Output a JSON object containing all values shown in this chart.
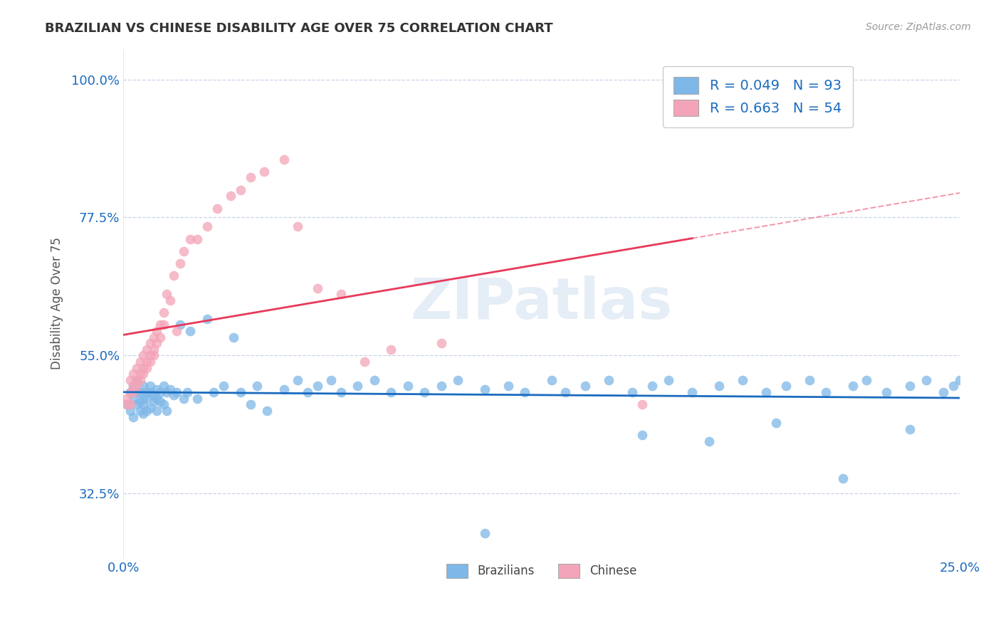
{
  "title": "BRAZILIAN VS CHINESE DISABILITY AGE OVER 75 CORRELATION CHART",
  "source": "Source: ZipAtlas.com",
  "ylabel": "Disability Age Over 75",
  "xlim": [
    0.0,
    0.25
  ],
  "ylim": [
    0.22,
    1.05
  ],
  "xtick_labels": [
    "0.0%",
    "25.0%"
  ],
  "ytick_labels": [
    "32.5%",
    "55.0%",
    "77.5%",
    "100.0%"
  ],
  "ytick_vals": [
    0.325,
    0.55,
    0.775,
    1.0
  ],
  "xtick_vals": [
    0.0,
    0.25
  ],
  "blue_color": "#7eb8e8",
  "pink_color": "#f4a4b8",
  "blue_line_color": "#1a6bbf",
  "pink_line_color": "#e8395a",
  "r_blue": 0.049,
  "n_blue": 93,
  "r_pink": 0.663,
  "n_pink": 54,
  "legend_label_blue": "Brazilians",
  "legend_label_pink": "Chinese",
  "watermark": "ZIPatlas",
  "background_color": "#ffffff",
  "grid_color": "#c8d4e8",
  "blue_scatter_x": [
    0.001,
    0.002,
    0.002,
    0.003,
    0.003,
    0.003,
    0.004,
    0.004,
    0.004,
    0.005,
    0.005,
    0.005,
    0.006,
    0.006,
    0.006,
    0.006,
    0.007,
    0.007,
    0.007,
    0.008,
    0.008,
    0.008,
    0.009,
    0.009,
    0.01,
    0.01,
    0.01,
    0.011,
    0.011,
    0.012,
    0.012,
    0.013,
    0.013,
    0.014,
    0.015,
    0.016,
    0.017,
    0.018,
    0.019,
    0.02,
    0.022,
    0.025,
    0.027,
    0.03,
    0.033,
    0.035,
    0.038,
    0.04,
    0.043,
    0.048,
    0.052,
    0.055,
    0.058,
    0.062,
    0.065,
    0.07,
    0.075,
    0.08,
    0.085,
    0.09,
    0.095,
    0.1,
    0.108,
    0.115,
    0.12,
    0.128,
    0.132,
    0.138,
    0.145,
    0.152,
    0.158,
    0.163,
    0.17,
    0.178,
    0.185,
    0.192,
    0.198,
    0.205,
    0.21,
    0.218,
    0.222,
    0.228,
    0.235,
    0.24,
    0.245,
    0.248,
    0.25,
    0.155,
    0.175,
    0.195,
    0.215,
    0.235,
    0.108
  ],
  "blue_scatter_y": [
    0.47,
    0.49,
    0.46,
    0.48,
    0.5,
    0.45,
    0.49,
    0.47,
    0.51,
    0.475,
    0.46,
    0.49,
    0.48,
    0.455,
    0.5,
    0.47,
    0.49,
    0.46,
    0.48,
    0.49,
    0.465,
    0.5,
    0.475,
    0.485,
    0.48,
    0.495,
    0.46,
    0.49,
    0.475,
    0.5,
    0.47,
    0.49,
    0.46,
    0.495,
    0.485,
    0.49,
    0.6,
    0.48,
    0.49,
    0.59,
    0.48,
    0.61,
    0.49,
    0.5,
    0.58,
    0.49,
    0.47,
    0.5,
    0.46,
    0.495,
    0.51,
    0.49,
    0.5,
    0.51,
    0.49,
    0.5,
    0.51,
    0.49,
    0.5,
    0.49,
    0.5,
    0.51,
    0.495,
    0.5,
    0.49,
    0.51,
    0.49,
    0.5,
    0.51,
    0.49,
    0.5,
    0.51,
    0.49,
    0.5,
    0.51,
    0.49,
    0.5,
    0.51,
    0.49,
    0.5,
    0.51,
    0.49,
    0.5,
    0.51,
    0.49,
    0.5,
    0.51,
    0.42,
    0.41,
    0.44,
    0.35,
    0.43,
    0.26
  ],
  "pink_scatter_x": [
    0.001,
    0.001,
    0.002,
    0.002,
    0.002,
    0.003,
    0.003,
    0.003,
    0.004,
    0.004,
    0.004,
    0.005,
    0.005,
    0.005,
    0.006,
    0.006,
    0.006,
    0.007,
    0.007,
    0.007,
    0.008,
    0.008,
    0.008,
    0.009,
    0.009,
    0.009,
    0.01,
    0.01,
    0.011,
    0.011,
    0.012,
    0.012,
    0.013,
    0.014,
    0.015,
    0.016,
    0.017,
    0.018,
    0.02,
    0.022,
    0.025,
    0.028,
    0.032,
    0.035,
    0.038,
    0.042,
    0.048,
    0.052,
    0.058,
    0.065,
    0.072,
    0.08,
    0.095,
    0.155
  ],
  "pink_scatter_y": [
    0.47,
    0.48,
    0.49,
    0.47,
    0.51,
    0.49,
    0.5,
    0.52,
    0.51,
    0.5,
    0.53,
    0.51,
    0.52,
    0.54,
    0.53,
    0.52,
    0.55,
    0.54,
    0.53,
    0.56,
    0.55,
    0.54,
    0.57,
    0.56,
    0.55,
    0.58,
    0.57,
    0.59,
    0.6,
    0.58,
    0.62,
    0.6,
    0.65,
    0.64,
    0.68,
    0.59,
    0.7,
    0.72,
    0.74,
    0.74,
    0.76,
    0.79,
    0.81,
    0.82,
    0.84,
    0.85,
    0.87,
    0.76,
    0.66,
    0.65,
    0.54,
    0.56,
    0.57,
    0.47
  ]
}
